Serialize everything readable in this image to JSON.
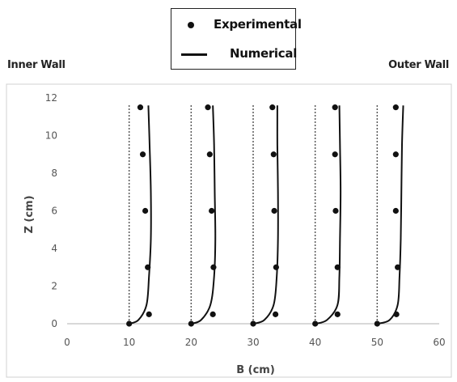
{
  "legend": {
    "items": [
      {
        "label": "Experimental",
        "marker": "dot"
      },
      {
        "label": "Numerical",
        "marker": "line"
      }
    ]
  },
  "annotations": {
    "inner_wall": "Inner Wall",
    "outer_wall": "Outer Wall"
  },
  "chart_data": {
    "type": "scatter",
    "title": "",
    "xlabel": "B (cm)",
    "ylabel": "Z (cm)",
    "xlim": [
      0,
      60
    ],
    "ylim": [
      0,
      12
    ],
    "xticks": [
      "0",
      "10",
      "20",
      "30",
      "40",
      "50",
      "60"
    ],
    "yticks": [
      "0",
      "2",
      "4",
      "6",
      "8",
      "10",
      "12"
    ],
    "grid": false,
    "legend_position": "top-center",
    "wall_positions": [
      10,
      20,
      30,
      40,
      50
    ],
    "series": [
      {
        "name": "Experimental",
        "kind": "points",
        "groups": [
          {
            "x": [
              10.0,
              13.2,
              13.0,
              12.6,
              12.2,
              11.8
            ],
            "y": [
              0,
              0.5,
              3,
              6,
              9,
              11.5
            ]
          },
          {
            "x": [
              20.0,
              23.5,
              23.6,
              23.3,
              23.0,
              22.7
            ],
            "y": [
              0,
              0.5,
              3,
              6,
              9,
              11.5
            ]
          },
          {
            "x": [
              30.0,
              33.6,
              33.7,
              33.4,
              33.3,
              33.1
            ],
            "y": [
              0,
              0.5,
              3,
              6,
              9,
              11.5
            ]
          },
          {
            "x": [
              40.0,
              43.6,
              43.6,
              43.3,
              43.2,
              43.2
            ],
            "y": [
              0,
              0.5,
              3,
              6,
              9,
              11.5
            ]
          },
          {
            "x": [
              50.0,
              53.1,
              53.3,
              53.0,
              53.0,
              53.0
            ],
            "y": [
              0,
              0.5,
              3,
              6,
              9,
              11.5
            ]
          }
        ]
      },
      {
        "name": "Numerical",
        "kind": "curves",
        "groups": [
          {
            "x": [
              10.0,
              11.5,
              12.8,
              13.2,
              13.5,
              13.5,
              13.3,
              13.1
            ],
            "y": [
              0,
              0.2,
              1.0,
              2.5,
              4.5,
              7.0,
              9.5,
              11.6
            ]
          },
          {
            "x": [
              20.0,
              21.6,
              23.1,
              23.7,
              23.9,
              23.8,
              23.7,
              23.5
            ],
            "y": [
              0,
              0.2,
              1.0,
              2.5,
              4.5,
              7.0,
              9.5,
              11.6
            ]
          },
          {
            "x": [
              30.0,
              31.8,
              33.3,
              33.8,
              34.0,
              34.0,
              33.9,
              33.9
            ],
            "y": [
              0,
              0.2,
              1.0,
              2.5,
              4.5,
              7.0,
              9.5,
              11.6
            ]
          },
          {
            "x": [
              40.0,
              41.9,
              43.6,
              43.9,
              44.0,
              44.1,
              44.0,
              43.9
            ],
            "y": [
              0,
              0.2,
              1.0,
              2.5,
              4.5,
              7.0,
              9.5,
              11.6
            ]
          },
          {
            "x": [
              50.0,
              52.0,
              53.3,
              53.6,
              53.8,
              53.9,
              54.0,
              54.2
            ],
            "y": [
              0,
              0.2,
              1.0,
              2.5,
              4.5,
              7.0,
              9.5,
              11.6
            ]
          }
        ]
      }
    ]
  }
}
